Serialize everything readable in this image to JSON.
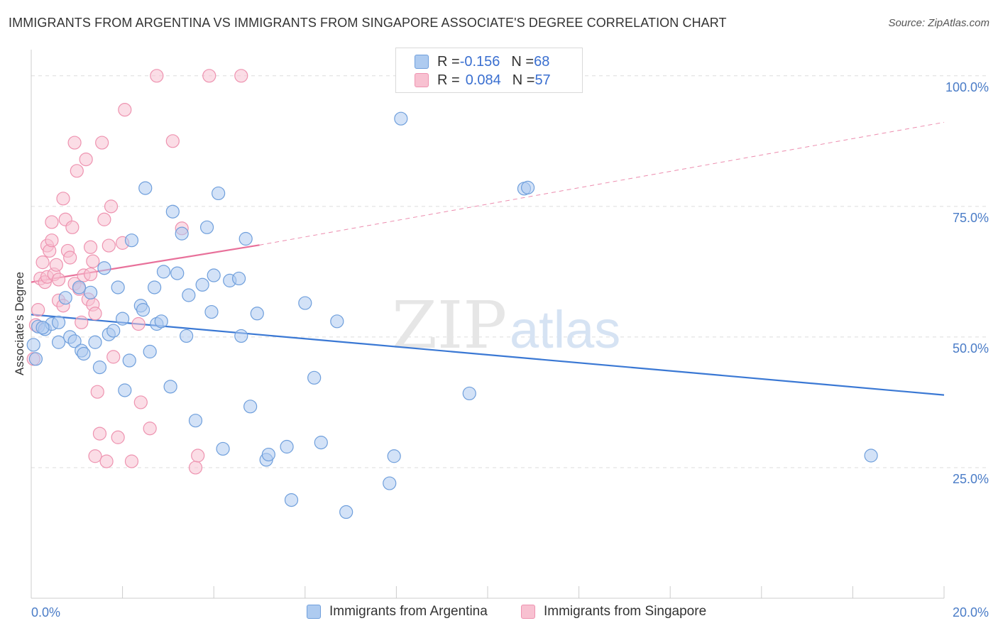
{
  "header": {
    "title": "IMMIGRANTS FROM ARGENTINA VS IMMIGRANTS FROM SINGAPORE ASSOCIATE'S DEGREE CORRELATION CHART",
    "source": "Source: ZipAtlas.com"
  },
  "watermark": {
    "zip": "ZIP",
    "atlas": "atlas"
  },
  "legend": {
    "rows": [
      {
        "r_label": "R = ",
        "r_value": "-0.156",
        "n_label": "N = ",
        "n_value": "68"
      },
      {
        "r_label": "R = ",
        "r_value": "0.084",
        "n_label": "N = ",
        "n_value": "57"
      }
    ]
  },
  "bottom_legend": {
    "argentina": "Immigrants from Argentina",
    "singapore": "Immigrants from Singapore"
  },
  "colors": {
    "argentina_fill": "#aecbf0",
    "argentina_stroke": "#6f9fdc",
    "argentina_line": "#3a78d4",
    "singapore_fill": "#f8c1d1",
    "singapore_stroke": "#ee93b0",
    "singapore_line": "#e8709a",
    "grid": "#dddddd",
    "tick_text": "#4a7cc7"
  },
  "chart_data": {
    "type": "scatter",
    "title": "IMMIGRANTS FROM ARGENTINA VS IMMIGRANTS FROM SINGAPORE ASSOCIATE'S DEGREE CORRELATION CHART",
    "xlabel": "",
    "ylabel": "Associate's Degree",
    "xlim": [
      0,
      20
    ],
    "ylim": [
      0,
      105
    ],
    "x_tick_labels": [
      "0.0%",
      "20.0%"
    ],
    "y_ticks": [
      25,
      50,
      75,
      100
    ],
    "y_tick_labels": [
      "25.0%",
      "50.0%",
      "75.0%",
      "100.0%"
    ],
    "grid": true,
    "legend_position": "top-center",
    "series": [
      {
        "name": "Immigrants from Argentina",
        "R": -0.156,
        "N": 68,
        "trend": {
          "x": [
            0,
            20
          ],
          "y": [
            54.3,
            38.9
          ]
        },
        "points": [
          [
            0.05,
            48.5
          ],
          [
            0.1,
            45.8
          ],
          [
            0.15,
            52
          ],
          [
            0.3,
            51.5
          ],
          [
            0.45,
            52.5
          ],
          [
            0.6,
            52.8
          ],
          [
            0.6,
            49
          ],
          [
            0.75,
            57.5
          ],
          [
            0.85,
            50
          ],
          [
            0.95,
            49.2
          ],
          [
            1.05,
            59.5
          ],
          [
            1.1,
            47.4
          ],
          [
            1.15,
            46.8
          ],
          [
            1.3,
            58.5
          ],
          [
            1.4,
            49
          ],
          [
            1.5,
            44.2
          ],
          [
            1.6,
            63.2
          ],
          [
            1.7,
            50.5
          ],
          [
            1.8,
            51.2
          ],
          [
            1.9,
            59.5
          ],
          [
            2.0,
            53.5
          ],
          [
            2.05,
            39.8
          ],
          [
            2.15,
            45.5
          ],
          [
            2.2,
            68.5
          ],
          [
            2.4,
            56
          ],
          [
            2.45,
            55.2
          ],
          [
            2.5,
            78.5
          ],
          [
            2.6,
            47.2
          ],
          [
            2.7,
            59.5
          ],
          [
            2.75,
            52.5
          ],
          [
            2.85,
            53
          ],
          [
            2.9,
            62.5
          ],
          [
            3.05,
            40.5
          ],
          [
            3.1,
            74
          ],
          [
            3.2,
            62.2
          ],
          [
            3.3,
            69.8
          ],
          [
            3.4,
            50.2
          ],
          [
            3.45,
            58
          ],
          [
            3.6,
            34
          ],
          [
            3.75,
            60
          ],
          [
            3.85,
            71
          ],
          [
            3.95,
            54.8
          ],
          [
            4.0,
            61.8
          ],
          [
            4.1,
            77.5
          ],
          [
            4.2,
            28.6
          ],
          [
            4.35,
            60.8
          ],
          [
            4.55,
            61.2
          ],
          [
            4.6,
            50.2
          ],
          [
            4.7,
            68.8
          ],
          [
            4.8,
            36.7
          ],
          [
            4.95,
            54.5
          ],
          [
            5.15,
            26.5
          ],
          [
            5.2,
            27.5
          ],
          [
            5.6,
            29
          ],
          [
            5.7,
            18.8
          ],
          [
            6.0,
            56.5
          ],
          [
            6.2,
            42.2
          ],
          [
            6.35,
            29.8
          ],
          [
            6.7,
            53
          ],
          [
            6.9,
            16.5
          ],
          [
            7.85,
            22
          ],
          [
            7.95,
            27.2
          ],
          [
            8.1,
            91.8
          ],
          [
            9.6,
            39.2
          ],
          [
            10.8,
            78.4
          ],
          [
            10.88,
            78.6
          ],
          [
            18.4,
            27.3
          ],
          [
            0.25,
            51.8
          ]
        ]
      },
      {
        "name": "Immigrants from Singapore",
        "R": 0.084,
        "N": 57,
        "trend": {
          "x": [
            0,
            5
          ],
          "y": [
            60.5,
            67.6
          ]
        },
        "trend_extension": {
          "x": [
            5,
            20
          ],
          "y": [
            67.6,
            91.1
          ]
        },
        "points": [
          [
            0.05,
            45.8
          ],
          [
            0.1,
            52.3
          ],
          [
            0.15,
            55.2
          ],
          [
            0.2,
            61.2
          ],
          [
            0.25,
            64.3
          ],
          [
            0.3,
            60.5
          ],
          [
            0.35,
            61.5
          ],
          [
            0.35,
            67.5
          ],
          [
            0.4,
            66.5
          ],
          [
            0.45,
            72
          ],
          [
            0.45,
            68.5
          ],
          [
            0.5,
            62
          ],
          [
            0.55,
            63.8
          ],
          [
            0.6,
            61
          ],
          [
            0.6,
            57
          ],
          [
            0.7,
            76.5
          ],
          [
            0.7,
            56
          ],
          [
            0.75,
            72.5
          ],
          [
            0.8,
            66.5
          ],
          [
            0.85,
            65.2
          ],
          [
            0.9,
            71
          ],
          [
            0.95,
            87.2
          ],
          [
            0.95,
            60.2
          ],
          [
            1.0,
            81.8
          ],
          [
            1.05,
            59.2
          ],
          [
            1.1,
            52.8
          ],
          [
            1.15,
            61.8
          ],
          [
            1.2,
            84
          ],
          [
            1.25,
            57.2
          ],
          [
            1.3,
            62
          ],
          [
            1.3,
            67.2
          ],
          [
            1.35,
            64.5
          ],
          [
            1.35,
            56.2
          ],
          [
            1.4,
            27.2
          ],
          [
            1.4,
            54.5
          ],
          [
            1.45,
            39.5
          ],
          [
            1.5,
            31.5
          ],
          [
            1.55,
            87.2
          ],
          [
            1.6,
            72.5
          ],
          [
            1.65,
            26.2
          ],
          [
            1.7,
            67.5
          ],
          [
            1.75,
            75
          ],
          [
            1.8,
            46.2
          ],
          [
            1.9,
            30.8
          ],
          [
            2.0,
            68
          ],
          [
            2.05,
            93.5
          ],
          [
            2.2,
            26.2
          ],
          [
            2.35,
            52.5
          ],
          [
            2.4,
            37.5
          ],
          [
            2.6,
            32.5
          ],
          [
            2.75,
            100
          ],
          [
            3.1,
            87.5
          ],
          [
            3.3,
            70.8
          ],
          [
            3.6,
            25
          ],
          [
            3.65,
            27.3
          ],
          [
            3.9,
            100
          ],
          [
            4.6,
            100
          ]
        ]
      }
    ]
  }
}
